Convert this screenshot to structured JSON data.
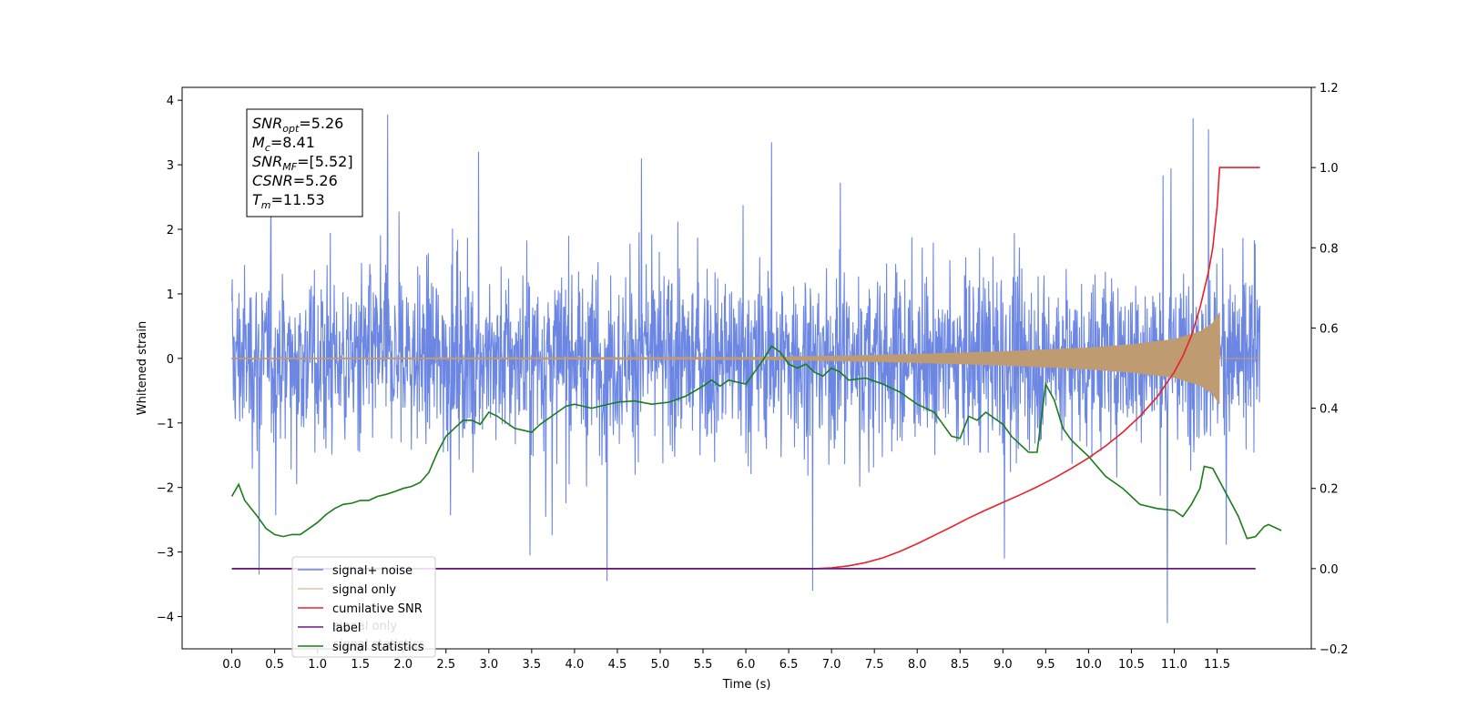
{
  "chart_data": {
    "type": "line",
    "xlabel": "Time (s)",
    "ylabel": "Whitened strain",
    "xlim": [
      -0.58,
      12.6
    ],
    "ylim": [
      -4.5,
      4.2
    ],
    "y2lim": [
      -0.2,
      1.2
    ],
    "x_ticks": [
      0.0,
      0.5,
      1.0,
      1.5,
      2.0,
      2.5,
      3.0,
      3.5,
      4.0,
      4.5,
      5.0,
      5.5,
      6.0,
      6.5,
      7.0,
      7.5,
      8.0,
      8.5,
      9.0,
      9.5,
      10.0,
      10.5,
      11.0,
      11.5
    ],
    "x_tick_labels": [
      "0.0",
      "0.5",
      "1.0",
      "1.5",
      "2.0",
      "2.5",
      "3.0",
      "3.5",
      "4.0",
      "4.5",
      "5.0",
      "5.5",
      "6.0",
      "6.5",
      "7.0",
      "7.5",
      "8.0",
      "8.5",
      "9.0",
      "9.5",
      "10.0",
      "10.5",
      "11.0",
      "11.5"
    ],
    "y_ticks": [
      -4,
      -3,
      -2,
      -1,
      0,
      1,
      2,
      3,
      4
    ],
    "y_tick_labels": [
      "−4",
      "−3",
      "−2",
      "−1",
      "0",
      "1",
      "2",
      "3",
      "4"
    ],
    "y2_ticks": [
      -0.2,
      0.0,
      0.2,
      0.4,
      0.6,
      0.8,
      1.0,
      1.2
    ],
    "y2_tick_labels": [
      "−0.2",
      "0.0",
      "0.2",
      "0.4",
      "0.6",
      "0.8",
      "1.0",
      "1.2"
    ],
    "grid": false,
    "legend_position": "lower-left",
    "series": [
      {
        "name": "signal+ noise",
        "color": "#6b86e3",
        "axis": "left",
        "x_range": [
          0.0,
          12.0
        ],
        "noise_band": [
          -2.4,
          2.4
        ],
        "extremes": [
          [
            1.82,
            3.78
          ],
          [
            10.92,
            -4.1
          ],
          [
            11.22,
            3.72
          ],
          [
            6.78,
            -3.6
          ],
          [
            0.32,
            -3.35
          ],
          [
            4.38,
            -3.45
          ],
          [
            3.48,
            -3.05
          ],
          [
            9.02,
            -3.1
          ],
          [
            2.88,
            3.2
          ],
          [
            4.78,
            3.1
          ],
          [
            6.3,
            3.35
          ],
          [
            11.4,
            3.55
          ]
        ]
      },
      {
        "name": "signal only",
        "color": "#bf9b71",
        "axis": "left",
        "x_range": [
          0.0,
          12.0
        ],
        "chirp_end": 11.53,
        "envelope": [
          [
            0.0,
            0.01
          ],
          [
            6.0,
            0.02
          ],
          [
            7.0,
            0.04
          ],
          [
            8.0,
            0.07
          ],
          [
            9.0,
            0.11
          ],
          [
            10.0,
            0.17
          ],
          [
            10.5,
            0.22
          ],
          [
            11.0,
            0.3
          ],
          [
            11.3,
            0.42
          ],
          [
            11.45,
            0.55
          ],
          [
            11.53,
            0.72
          ]
        ]
      },
      {
        "name": "cumilative SNR",
        "color": "#e8212a",
        "axis": "right",
        "points": [
          [
            0.0,
            0.0
          ],
          [
            6.8,
            0.0
          ],
          [
            7.0,
            0.002
          ],
          [
            7.2,
            0.007
          ],
          [
            7.4,
            0.015
          ],
          [
            7.6,
            0.027
          ],
          [
            7.8,
            0.043
          ],
          [
            8.0,
            0.062
          ],
          [
            8.2,
            0.083
          ],
          [
            8.4,
            0.104
          ],
          [
            8.6,
            0.126
          ],
          [
            8.8,
            0.146
          ],
          [
            9.0,
            0.165
          ],
          [
            9.2,
            0.184
          ],
          [
            9.4,
            0.204
          ],
          [
            9.6,
            0.226
          ],
          [
            9.8,
            0.25
          ],
          [
            10.0,
            0.276
          ],
          [
            10.2,
            0.306
          ],
          [
            10.4,
            0.34
          ],
          [
            10.6,
            0.38
          ],
          [
            10.8,
            0.428
          ],
          [
            11.0,
            0.49
          ],
          [
            11.1,
            0.53
          ],
          [
            11.2,
            0.58
          ],
          [
            11.3,
            0.65
          ],
          [
            11.4,
            0.74
          ],
          [
            11.45,
            0.8
          ],
          [
            11.5,
            0.9
          ],
          [
            11.53,
            1.0
          ],
          [
            12.0,
            1.0
          ]
        ]
      },
      {
        "name": "label",
        "color": "#6d1680",
        "axis": "right",
        "points": [
          [
            0.0,
            0.0
          ],
          [
            11.95,
            0.0
          ]
        ]
      },
      {
        "name": "signal statistics",
        "color": "#1a7d1a",
        "axis": "right",
        "points": [
          [
            0.0,
            0.18
          ],
          [
            0.08,
            0.21
          ],
          [
            0.15,
            0.17
          ],
          [
            0.3,
            0.13
          ],
          [
            0.4,
            0.1
          ],
          [
            0.5,
            0.085
          ],
          [
            0.6,
            0.08
          ],
          [
            0.7,
            0.085
          ],
          [
            0.8,
            0.085
          ],
          [
            0.9,
            0.1
          ],
          [
            1.0,
            0.115
          ],
          [
            1.1,
            0.135
          ],
          [
            1.2,
            0.15
          ],
          [
            1.3,
            0.16
          ],
          [
            1.4,
            0.163
          ],
          [
            1.5,
            0.17
          ],
          [
            1.6,
            0.17
          ],
          [
            1.7,
            0.18
          ],
          [
            1.8,
            0.185
          ],
          [
            1.9,
            0.192
          ],
          [
            2.0,
            0.2
          ],
          [
            2.1,
            0.205
          ],
          [
            2.2,
            0.215
          ],
          [
            2.3,
            0.24
          ],
          [
            2.4,
            0.29
          ],
          [
            2.5,
            0.33
          ],
          [
            2.6,
            0.35
          ],
          [
            2.7,
            0.37
          ],
          [
            2.8,
            0.37
          ],
          [
            2.9,
            0.36
          ],
          [
            3.0,
            0.39
          ],
          [
            3.1,
            0.38
          ],
          [
            3.2,
            0.365
          ],
          [
            3.3,
            0.35
          ],
          [
            3.4,
            0.345
          ],
          [
            3.5,
            0.34
          ],
          [
            3.6,
            0.36
          ],
          [
            3.7,
            0.375
          ],
          [
            3.8,
            0.39
          ],
          [
            3.9,
            0.405
          ],
          [
            4.0,
            0.41
          ],
          [
            4.1,
            0.405
          ],
          [
            4.2,
            0.4
          ],
          [
            4.3,
            0.405
          ],
          [
            4.5,
            0.415
          ],
          [
            4.7,
            0.418
          ],
          [
            4.9,
            0.41
          ],
          [
            5.1,
            0.415
          ],
          [
            5.3,
            0.43
          ],
          [
            5.5,
            0.455
          ],
          [
            5.6,
            0.47
          ],
          [
            5.7,
            0.455
          ],
          [
            5.8,
            0.47
          ],
          [
            6.0,
            0.46
          ],
          [
            6.1,
            0.49
          ],
          [
            6.2,
            0.52
          ],
          [
            6.3,
            0.555
          ],
          [
            6.4,
            0.54
          ],
          [
            6.5,
            0.51
          ],
          [
            6.6,
            0.5
          ],
          [
            6.7,
            0.51
          ],
          [
            6.8,
            0.49
          ],
          [
            6.9,
            0.48
          ],
          [
            7.0,
            0.5
          ],
          [
            7.1,
            0.49
          ],
          [
            7.2,
            0.47
          ],
          [
            7.4,
            0.475
          ],
          [
            7.6,
            0.46
          ],
          [
            7.8,
            0.44
          ],
          [
            8.0,
            0.41
          ],
          [
            8.2,
            0.39
          ],
          [
            8.3,
            0.36
          ],
          [
            8.4,
            0.33
          ],
          [
            8.5,
            0.325
          ],
          [
            8.6,
            0.38
          ],
          [
            8.7,
            0.37
          ],
          [
            8.8,
            0.39
          ],
          [
            9.0,
            0.36
          ],
          [
            9.1,
            0.33
          ],
          [
            9.3,
            0.29
          ],
          [
            9.4,
            0.29
          ],
          [
            9.5,
            0.46
          ],
          [
            9.6,
            0.42
          ],
          [
            9.7,
            0.35
          ],
          [
            9.8,
            0.32
          ],
          [
            10.0,
            0.28
          ],
          [
            10.2,
            0.23
          ],
          [
            10.4,
            0.2
          ],
          [
            10.5,
            0.18
          ],
          [
            10.6,
            0.16
          ],
          [
            10.8,
            0.15
          ],
          [
            11.0,
            0.145
          ],
          [
            11.1,
            0.13
          ],
          [
            11.2,
            0.16
          ],
          [
            11.3,
            0.2
          ],
          [
            11.35,
            0.255
          ],
          [
            11.45,
            0.25
          ],
          [
            11.6,
            0.19
          ],
          [
            11.75,
            0.13
          ],
          [
            11.85,
            0.075
          ],
          [
            11.95,
            0.08
          ],
          [
            12.05,
            0.105
          ],
          [
            12.1,
            0.11
          ],
          [
            12.25,
            0.095
          ]
        ]
      }
    ],
    "annotation": {
      "lines": [
        {
          "main": "SNR",
          "sub": "opt",
          "value": "=5.26"
        },
        {
          "main": "M",
          "sub": "c",
          "value": "=8.41"
        },
        {
          "main": "SNR",
          "sub": "MF",
          "value": "=[5.52]"
        },
        {
          "main": "CSNR",
          "sub": "",
          "value": "=5.26"
        },
        {
          "main": "T",
          "sub": "m",
          "value": "=11.53"
        }
      ]
    }
  },
  "legend_overlap_fragments": [
    "signal only",
    "signal statistics"
  ]
}
